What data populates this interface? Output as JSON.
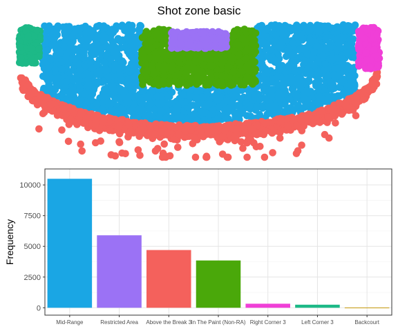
{
  "title": "Shot zone basic",
  "colors": {
    "mid_range": "#1aa6e4",
    "restricted_area": "#f4615c",
    "in_the_paint": "#4aa80a",
    "above_the_break_3": "#9b72f5",
    "right_corner_3": "#f03fd7",
    "left_corner_3": "#1db987",
    "backcourt": "#c89b08"
  },
  "chart_data": [
    {
      "type": "scatter",
      "title": "Shot zone basic",
      "xlabel": "",
      "ylabel": "",
      "grid": false,
      "legend": "none",
      "series": [
        {
          "name": "Above the Break 3",
          "color_key": "restricted_area",
          "region": "outer arc band"
        },
        {
          "name": "Mid-Range",
          "color_key": "mid_range",
          "region": "between arc and paint"
        },
        {
          "name": "In The Paint (Non-RA)",
          "color_key": "in_the_paint",
          "region": "paint rectangle"
        },
        {
          "name": "Restricted Area",
          "color_key": "above_the_break_3",
          "region": "near basket"
        },
        {
          "name": "Right Corner 3",
          "color_key": "right_corner_3",
          "region": "right corner"
        },
        {
          "name": "Left Corner 3",
          "color_key": "left_corner_3",
          "region": "left corner"
        }
      ]
    },
    {
      "type": "bar",
      "title": "",
      "xlabel": "",
      "ylabel": "Frequency",
      "ylim": [
        0,
        11000
      ],
      "yticks": [
        0,
        2500,
        5000,
        7500,
        10000
      ],
      "yticklabels": [
        "0",
        "2500",
        "5000",
        "7500",
        "10000"
      ],
      "grid": true,
      "categories": [
        "Mid-Range",
        "Restricted Area",
        "Above the Break 3",
        "In The Paint (Non-RA)",
        "Right Corner 3",
        "Left Corner 3",
        "Backcourt"
      ],
      "values": [
        10500,
        5900,
        4700,
        3850,
        330,
        250,
        20
      ],
      "bar_colors": [
        "mid_range",
        "above_the_break_3",
        "restricted_area",
        "in_the_paint",
        "right_corner_3",
        "left_corner_3",
        "backcourt"
      ]
    }
  ]
}
